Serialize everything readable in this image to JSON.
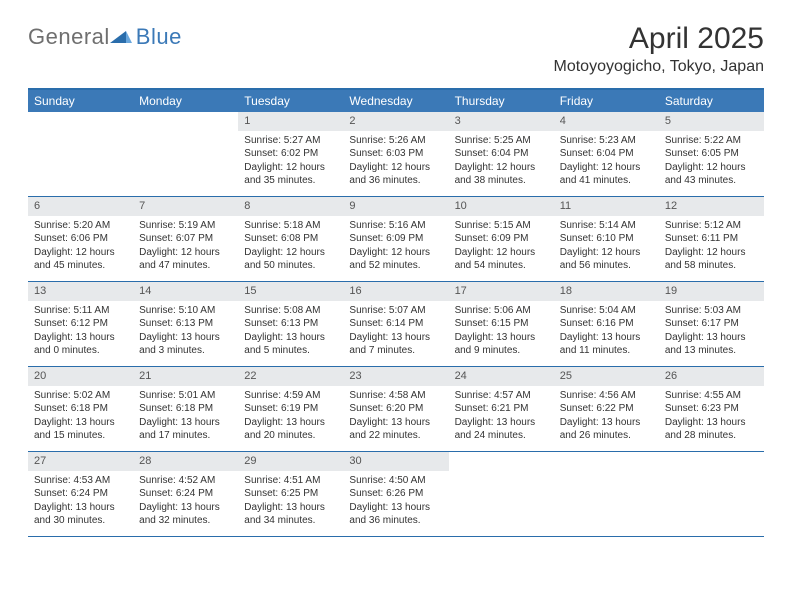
{
  "logo": {
    "general": "General",
    "blue": "Blue"
  },
  "title": "April 2025",
  "location": "Motoyoyogicho, Tokyo, Japan",
  "colors": {
    "header_bg": "#3b79b7",
    "header_text": "#ffffff",
    "rule": "#2a6dab",
    "daynum_bg": "#e7e9eb",
    "daynum_text": "#555555",
    "body_text": "#333333",
    "logo_gray": "#6f6f6f",
    "logo_blue": "#3b79b7",
    "page_bg": "#ffffff"
  },
  "weekdays": [
    "Sunday",
    "Monday",
    "Tuesday",
    "Wednesday",
    "Thursday",
    "Friday",
    "Saturday"
  ],
  "weeks": [
    [
      null,
      null,
      {
        "n": "1",
        "sr": "Sunrise: 5:27 AM",
        "ss": "Sunset: 6:02 PM",
        "d1": "Daylight: 12 hours",
        "d2": "and 35 minutes."
      },
      {
        "n": "2",
        "sr": "Sunrise: 5:26 AM",
        "ss": "Sunset: 6:03 PM",
        "d1": "Daylight: 12 hours",
        "d2": "and 36 minutes."
      },
      {
        "n": "3",
        "sr": "Sunrise: 5:25 AM",
        "ss": "Sunset: 6:04 PM",
        "d1": "Daylight: 12 hours",
        "d2": "and 38 minutes."
      },
      {
        "n": "4",
        "sr": "Sunrise: 5:23 AM",
        "ss": "Sunset: 6:04 PM",
        "d1": "Daylight: 12 hours",
        "d2": "and 41 minutes."
      },
      {
        "n": "5",
        "sr": "Sunrise: 5:22 AM",
        "ss": "Sunset: 6:05 PM",
        "d1": "Daylight: 12 hours",
        "d2": "and 43 minutes."
      }
    ],
    [
      {
        "n": "6",
        "sr": "Sunrise: 5:20 AM",
        "ss": "Sunset: 6:06 PM",
        "d1": "Daylight: 12 hours",
        "d2": "and 45 minutes."
      },
      {
        "n": "7",
        "sr": "Sunrise: 5:19 AM",
        "ss": "Sunset: 6:07 PM",
        "d1": "Daylight: 12 hours",
        "d2": "and 47 minutes."
      },
      {
        "n": "8",
        "sr": "Sunrise: 5:18 AM",
        "ss": "Sunset: 6:08 PM",
        "d1": "Daylight: 12 hours",
        "d2": "and 50 minutes."
      },
      {
        "n": "9",
        "sr": "Sunrise: 5:16 AM",
        "ss": "Sunset: 6:09 PM",
        "d1": "Daylight: 12 hours",
        "d2": "and 52 minutes."
      },
      {
        "n": "10",
        "sr": "Sunrise: 5:15 AM",
        "ss": "Sunset: 6:09 PM",
        "d1": "Daylight: 12 hours",
        "d2": "and 54 minutes."
      },
      {
        "n": "11",
        "sr": "Sunrise: 5:14 AM",
        "ss": "Sunset: 6:10 PM",
        "d1": "Daylight: 12 hours",
        "d2": "and 56 minutes."
      },
      {
        "n": "12",
        "sr": "Sunrise: 5:12 AM",
        "ss": "Sunset: 6:11 PM",
        "d1": "Daylight: 12 hours",
        "d2": "and 58 minutes."
      }
    ],
    [
      {
        "n": "13",
        "sr": "Sunrise: 5:11 AM",
        "ss": "Sunset: 6:12 PM",
        "d1": "Daylight: 13 hours",
        "d2": "and 0 minutes."
      },
      {
        "n": "14",
        "sr": "Sunrise: 5:10 AM",
        "ss": "Sunset: 6:13 PM",
        "d1": "Daylight: 13 hours",
        "d2": "and 3 minutes."
      },
      {
        "n": "15",
        "sr": "Sunrise: 5:08 AM",
        "ss": "Sunset: 6:13 PM",
        "d1": "Daylight: 13 hours",
        "d2": "and 5 minutes."
      },
      {
        "n": "16",
        "sr": "Sunrise: 5:07 AM",
        "ss": "Sunset: 6:14 PM",
        "d1": "Daylight: 13 hours",
        "d2": "and 7 minutes."
      },
      {
        "n": "17",
        "sr": "Sunrise: 5:06 AM",
        "ss": "Sunset: 6:15 PM",
        "d1": "Daylight: 13 hours",
        "d2": "and 9 minutes."
      },
      {
        "n": "18",
        "sr": "Sunrise: 5:04 AM",
        "ss": "Sunset: 6:16 PM",
        "d1": "Daylight: 13 hours",
        "d2": "and 11 minutes."
      },
      {
        "n": "19",
        "sr": "Sunrise: 5:03 AM",
        "ss": "Sunset: 6:17 PM",
        "d1": "Daylight: 13 hours",
        "d2": "and 13 minutes."
      }
    ],
    [
      {
        "n": "20",
        "sr": "Sunrise: 5:02 AM",
        "ss": "Sunset: 6:18 PM",
        "d1": "Daylight: 13 hours",
        "d2": "and 15 minutes."
      },
      {
        "n": "21",
        "sr": "Sunrise: 5:01 AM",
        "ss": "Sunset: 6:18 PM",
        "d1": "Daylight: 13 hours",
        "d2": "and 17 minutes."
      },
      {
        "n": "22",
        "sr": "Sunrise: 4:59 AM",
        "ss": "Sunset: 6:19 PM",
        "d1": "Daylight: 13 hours",
        "d2": "and 20 minutes."
      },
      {
        "n": "23",
        "sr": "Sunrise: 4:58 AM",
        "ss": "Sunset: 6:20 PM",
        "d1": "Daylight: 13 hours",
        "d2": "and 22 minutes."
      },
      {
        "n": "24",
        "sr": "Sunrise: 4:57 AM",
        "ss": "Sunset: 6:21 PM",
        "d1": "Daylight: 13 hours",
        "d2": "and 24 minutes."
      },
      {
        "n": "25",
        "sr": "Sunrise: 4:56 AM",
        "ss": "Sunset: 6:22 PM",
        "d1": "Daylight: 13 hours",
        "d2": "and 26 minutes."
      },
      {
        "n": "26",
        "sr": "Sunrise: 4:55 AM",
        "ss": "Sunset: 6:23 PM",
        "d1": "Daylight: 13 hours",
        "d2": "and 28 minutes."
      }
    ],
    [
      {
        "n": "27",
        "sr": "Sunrise: 4:53 AM",
        "ss": "Sunset: 6:24 PM",
        "d1": "Daylight: 13 hours",
        "d2": "and 30 minutes."
      },
      {
        "n": "28",
        "sr": "Sunrise: 4:52 AM",
        "ss": "Sunset: 6:24 PM",
        "d1": "Daylight: 13 hours",
        "d2": "and 32 minutes."
      },
      {
        "n": "29",
        "sr": "Sunrise: 4:51 AM",
        "ss": "Sunset: 6:25 PM",
        "d1": "Daylight: 13 hours",
        "d2": "and 34 minutes."
      },
      {
        "n": "30",
        "sr": "Sunrise: 4:50 AM",
        "ss": "Sunset: 6:26 PM",
        "d1": "Daylight: 13 hours",
        "d2": "and 36 minutes."
      },
      null,
      null,
      null
    ]
  ]
}
